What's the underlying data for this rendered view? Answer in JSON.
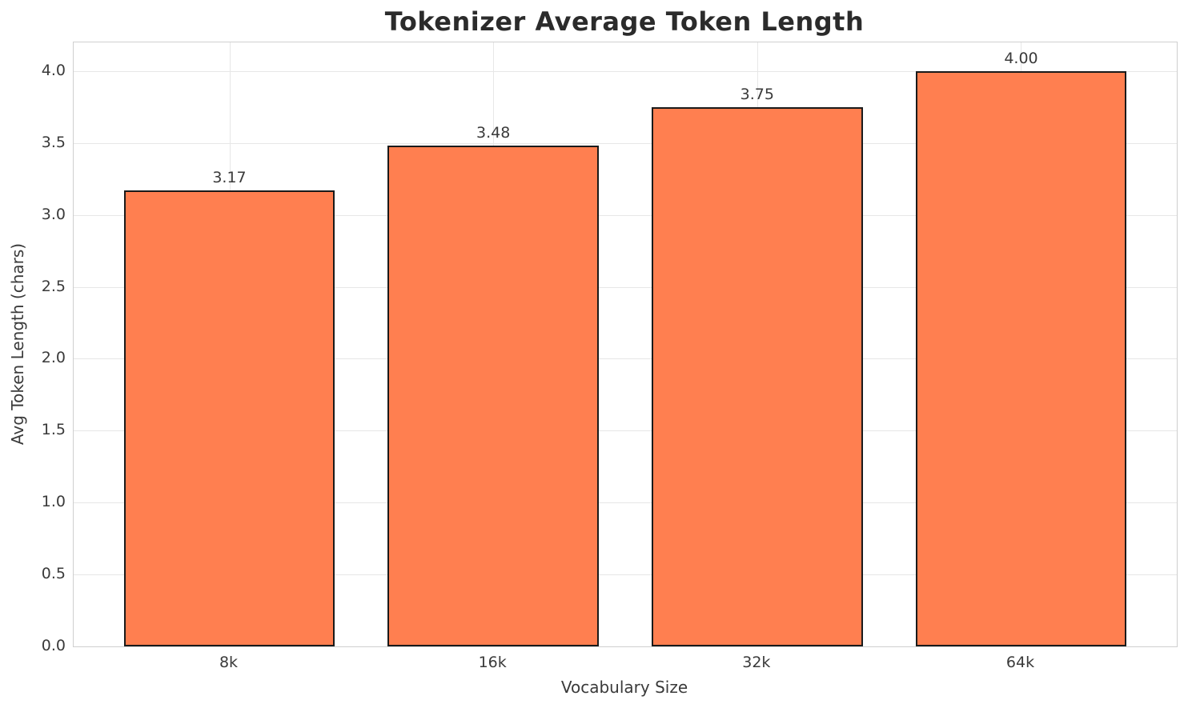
{
  "chart_data": {
    "type": "bar",
    "title": "Tokenizer Average Token Length",
    "xlabel": "Vocabulary Size",
    "ylabel": "Avg Token Length (chars)",
    "categories": [
      "8k",
      "16k",
      "32k",
      "64k"
    ],
    "values": [
      3.17,
      3.48,
      3.75,
      4.0
    ],
    "value_labels": [
      "3.17",
      "3.48",
      "3.75",
      "4.00"
    ],
    "ylim": [
      0,
      4.2
    ],
    "yticks": [
      0.0,
      0.5,
      1.0,
      1.5,
      2.0,
      2.5,
      3.0,
      3.5,
      4.0
    ],
    "ytick_labels": [
      "0.0",
      "0.5",
      "1.0",
      "1.5",
      "2.0",
      "2.5",
      "3.0",
      "3.5",
      "4.0"
    ],
    "grid": true,
    "legend": null,
    "colors": {
      "bar_fill": "#FF7F50",
      "bar_edge": "#1a1a1a",
      "grid": "#e7e7e7",
      "spine": "#cfcfcf",
      "text": "#3a3a3a",
      "title_text": "#2b2b2b",
      "background": "#ffffff"
    }
  }
}
